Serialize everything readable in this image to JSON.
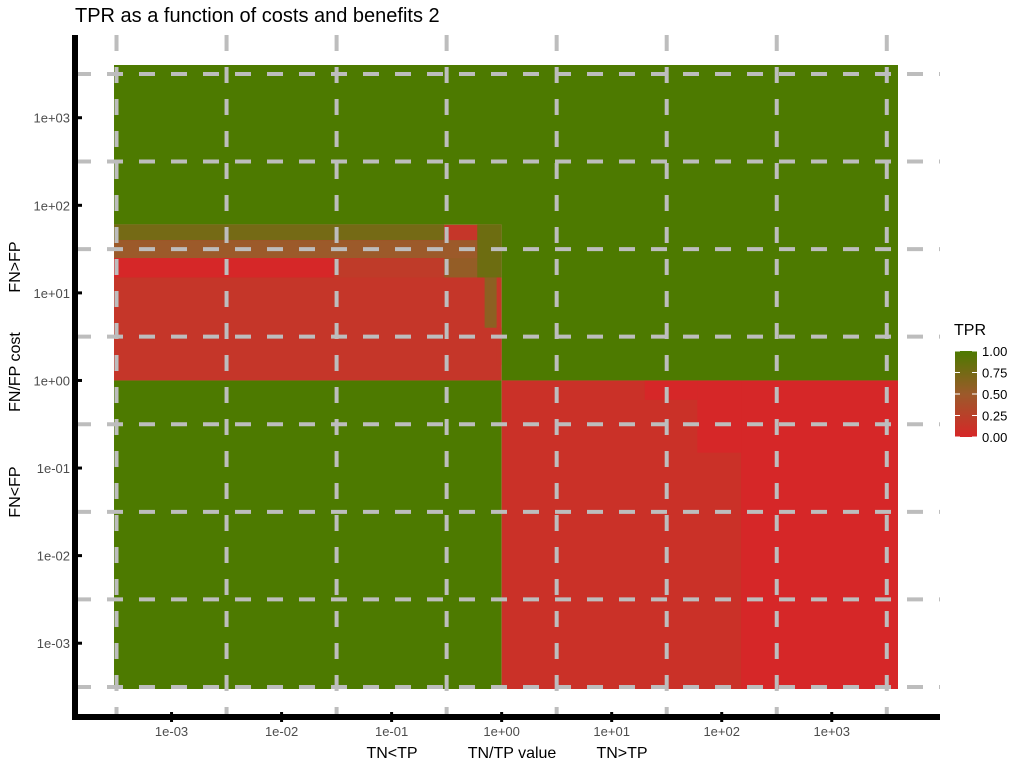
{
  "chart_data": {
    "type": "heatmap",
    "title": "TPR as a function of costs and benefits 2",
    "x_axis": {
      "scale": "log10",
      "range": [
        0.0003,
        4000
      ],
      "ticks": [
        0.001,
        0.01,
        0.1,
        1,
        10,
        100,
        1000
      ],
      "tick_labels": [
        "1e-03",
        "1e-02",
        "1e-01",
        "1e+00",
        "1e+01",
        "1e+02",
        "1e+03"
      ],
      "labels": [
        "TN<TP",
        "TN/TP value",
        "TN>TP"
      ]
    },
    "y_axis": {
      "scale": "log10",
      "range": [
        0.0003,
        4000
      ],
      "ticks": [
        0.001,
        0.01,
        0.1,
        1,
        10,
        100,
        1000
      ],
      "tick_labels": [
        "1e-03",
        "1e-02",
        "1e-01",
        "1e+00",
        "1e+01",
        "1e+02",
        "1e+03"
      ],
      "labels": [
        "FN<FP",
        "FN/FP cost",
        "FN>FP"
      ]
    },
    "legend": {
      "title": "TPR",
      "position": "right",
      "min": 0,
      "max": 1,
      "breaks": [
        1.0,
        0.75,
        0.5,
        0.25,
        0.0
      ],
      "break_labels": [
        "1.00",
        "0.75",
        "0.50",
        "0.25",
        "0.00"
      ],
      "colors": {
        "low": "#d62728",
        "mid": "#9c5a2a",
        "high": "#4d7a00"
      }
    },
    "grid": true,
    "regions": [
      {
        "region": "FN/FP cost > ~60",
        "x_range": [
          0.0003,
          4000
        ],
        "y_range": [
          60,
          4000
        ],
        "tpr": 1.0
      },
      {
        "region": "FN/FP cost 1 to ~60, TN/TP value < 1",
        "x_range": [
          0.0003,
          1
        ],
        "y_range": [
          1,
          60
        ],
        "tpr": 0.15,
        "note_values": [
          0.0,
          0.1,
          0.2,
          0.5,
          0.8
        ]
      },
      {
        "region": "FN/FP cost 1 to 4000, TN/TP value > 1",
        "x_range": [
          1,
          4000
        ],
        "y_range": [
          1,
          4000
        ],
        "tpr": 1.0
      },
      {
        "region": "FN/FP cost < 1, TN/TP value < 1",
        "x_range": [
          0.0003,
          1
        ],
        "y_range": [
          0.0003,
          1
        ],
        "tpr": 1.0
      },
      {
        "region": "FN/FP cost < 1, TN/TP value > 1",
        "x_range": [
          1,
          4000
        ],
        "y_range": [
          0.0003,
          1
        ],
        "tpr": 0.1,
        "note_values": [
          0.0,
          0.1,
          0.2
        ]
      }
    ]
  }
}
